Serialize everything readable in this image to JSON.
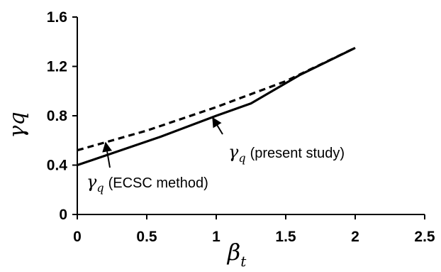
{
  "chart_data": {
    "type": "line",
    "title": "",
    "xlabel": {
      "symbol": "β",
      "subscript": "t"
    },
    "ylabel": {
      "symbol": "γ",
      "suffix": "q"
    },
    "xlim": [
      0,
      2.5
    ],
    "ylim": [
      0,
      1.6
    ],
    "x_ticks": [
      "0",
      "0.5",
      "1",
      "1.5",
      "2",
      "2.5"
    ],
    "y_ticks": [
      "0",
      "0.4",
      "0.8",
      "1.2",
      "1.6"
    ],
    "grid": false,
    "series": [
      {
        "style": "solid",
        "color": "#000000",
        "x": [
          0,
          0.6,
          1.0,
          1.25,
          1.6,
          2.0
        ],
        "y": [
          0.4,
          0.63,
          0.8,
          0.9,
          1.13,
          1.35
        ]
      },
      {
        "style": "dashed",
        "color": "#000000",
        "x": [
          0,
          0.5,
          1.0,
          1.5,
          2.0
        ],
        "y": [
          0.52,
          0.68,
          0.87,
          1.08,
          1.35
        ]
      }
    ],
    "annotations": [
      {
        "symbol": "γ",
        "subscript": "q",
        "text": "(present study)"
      },
      {
        "symbol": "γ",
        "subscript": "q",
        "text": "(ECSC method)"
      }
    ]
  }
}
